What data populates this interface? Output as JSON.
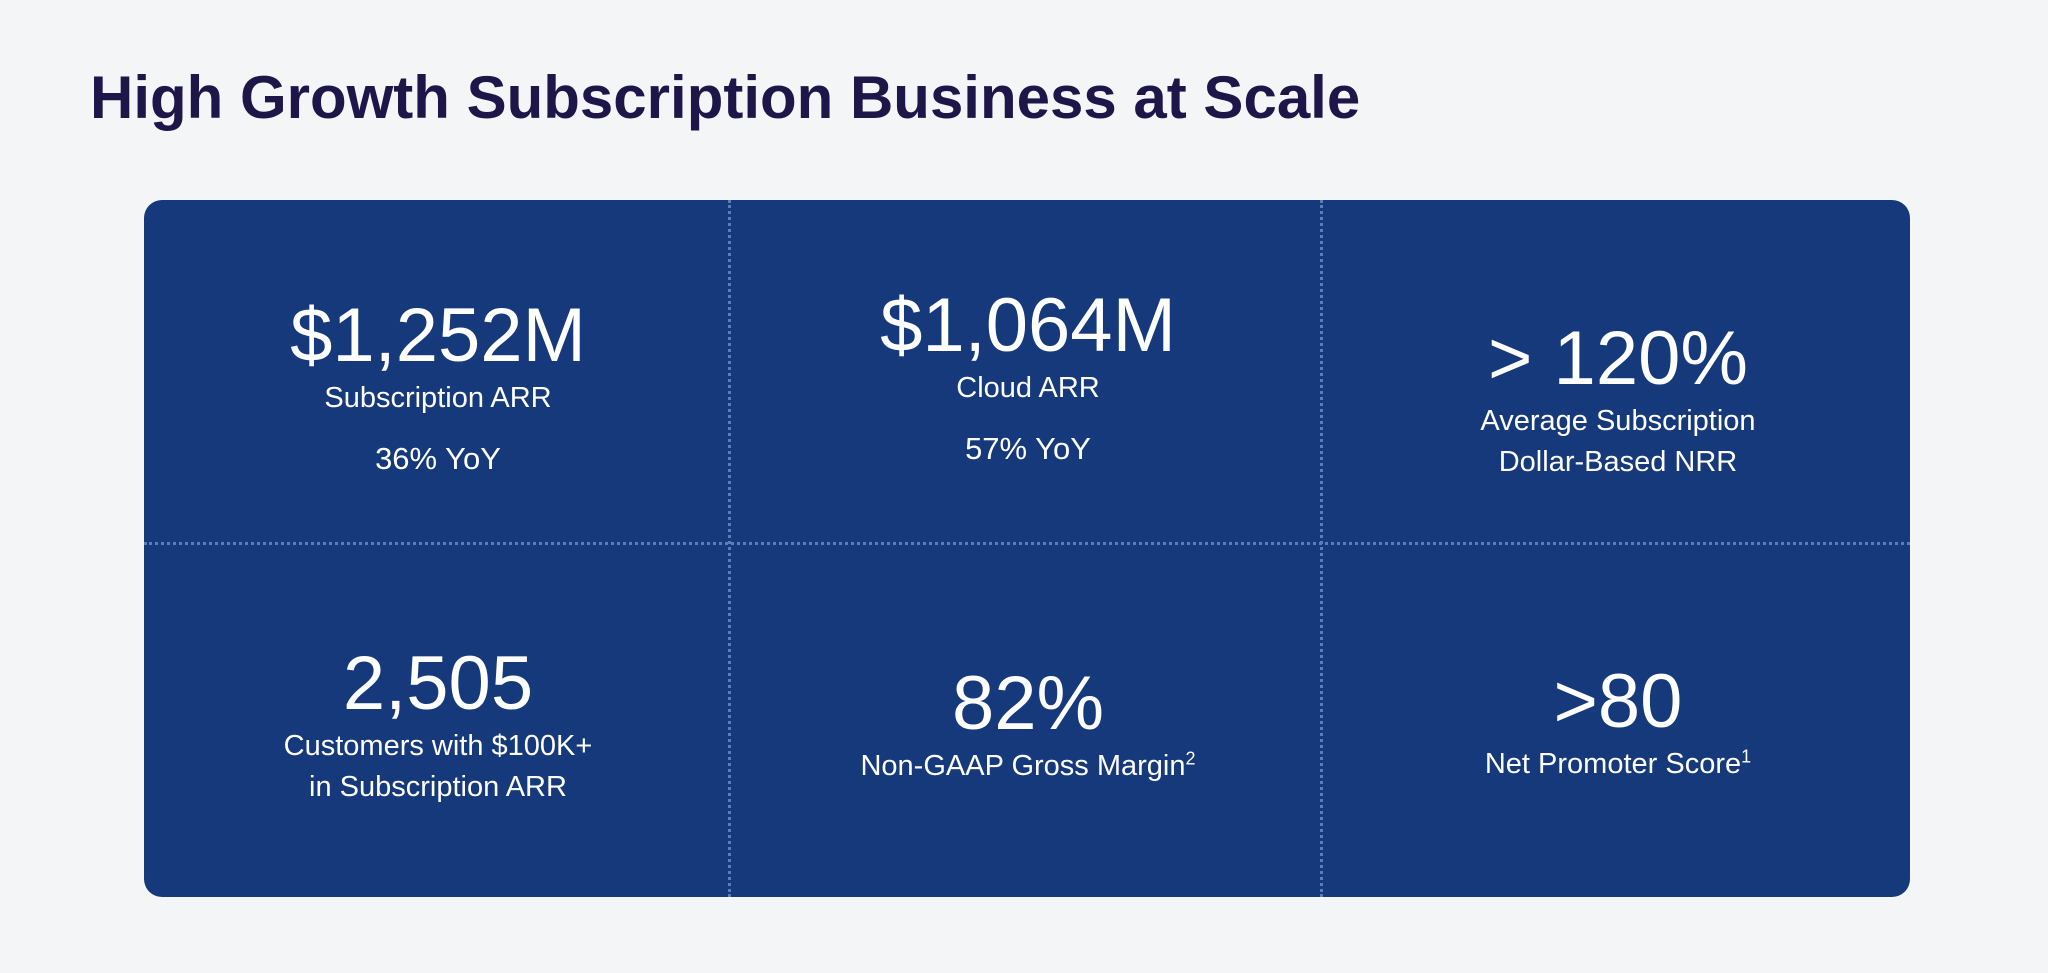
{
  "title": "High Growth Subscription Business at Scale",
  "colors": {
    "background": "#f4f5f7",
    "title": "#1e1548",
    "panel": "#15397a",
    "text": "#ffffff",
    "divider": "#5a7fb8"
  },
  "metrics": [
    {
      "value": "$1,252M",
      "label_lines": [
        "Subscription ARR"
      ],
      "sub": "36% YoY"
    },
    {
      "value": "$1,064M",
      "label_lines": [
        "Cloud ARR"
      ],
      "sub": "57% YoY"
    },
    {
      "value": "> 120%",
      "label_lines": [
        "Average Subscription",
        "Dollar-Based NRR"
      ]
    },
    {
      "value": "2,505",
      "label_lines": [
        "Customers with $100K+",
        "in Subscription ARR"
      ]
    },
    {
      "value": "82%",
      "label_lines": [
        "Non-GAAP Gross Margin"
      ],
      "footnote": "2"
    },
    {
      "value": ">80",
      "label_lines": [
        "Net Promoter Score"
      ],
      "footnote": "1"
    }
  ]
}
